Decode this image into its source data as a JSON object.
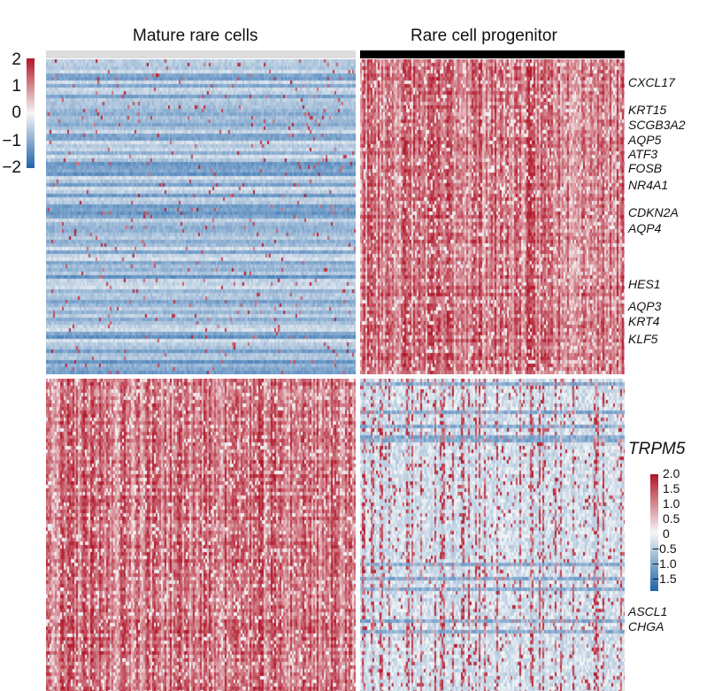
{
  "chart_data": {
    "type": "heatmap",
    "groups": [
      {
        "label": "Mature rare cells",
        "bar_color": "#dcdcdc"
      },
      {
        "label": "Rare cell progenitor",
        "bar_color": "#000000"
      }
    ],
    "panels": [
      {
        "name": "top",
        "gene_labels": [
          "CXCL17",
          "KRT15",
          "SCGB3A2",
          "AQP5",
          "ATF3",
          "FOSB",
          "NR4A1",
          "CDKN2A",
          "AQP4",
          "HES1",
          "AQP3",
          "KRT4",
          "KLF5"
        ],
        "pattern": {
          "Mature rare cells": "low",
          "Rare cell progenitor": "high"
        },
        "color_scale": {
          "min": -2,
          "max": 2,
          "ticks": [
            "2",
            "1",
            "0",
            "−1",
            "−2"
          ]
        }
      },
      {
        "name": "bottom",
        "gene_labels": [
          "TRPM5",
          "ASCL1",
          "CHGA"
        ],
        "pattern": {
          "Mature rare cells": "high",
          "Rare cell progenitor": "mixed"
        },
        "color_scale": {
          "min": -1.5,
          "max": 2.0,
          "ticks": [
            "2.0",
            "1.5",
            "1.0",
            "0.5",
            "0",
            "−0.5",
            "−1.0",
            "−1.5"
          ]
        }
      }
    ],
    "colormap": {
      "low": "#2166ac",
      "mid": "#f7f7f7",
      "high": "#b2182b"
    }
  }
}
